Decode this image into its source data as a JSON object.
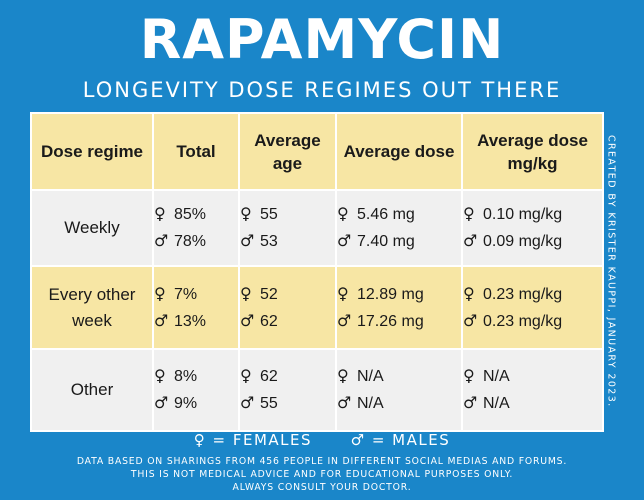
{
  "title": "RAPAMYCIN",
  "subtitle": "LONGEVITY DOSE REGIMES OUT THERE",
  "credit": "CREATED BY KRISTER KAUPPI, JANUARY 2023.",
  "colors": {
    "background": "#1a86c9",
    "header_row": "#f7e6a4",
    "row_light": "#f0f0f0",
    "row_highlight": "#f7e6a4"
  },
  "symbols": {
    "female": "♀",
    "male": "♂"
  },
  "table": {
    "headers": [
      "Dose regime",
      "Total",
      "Average age",
      "Average dose",
      "Average dose mg/kg"
    ],
    "rows": [
      {
        "regime": "Weekly",
        "total": {
          "female": "85%",
          "male": "78%"
        },
        "age": {
          "female": "55",
          "male": "53"
        },
        "dose": {
          "female": "5.46 mg",
          "male": "7.40 mg"
        },
        "dose_kg": {
          "female": "0.10 mg/kg",
          "male": "0.09 mg/kg"
        }
      },
      {
        "regime": "Every other week",
        "total": {
          "female": "7%",
          "male": "13%"
        },
        "age": {
          "female": "52",
          "male": "62"
        },
        "dose": {
          "female": "12.89 mg",
          "male": "17.26 mg"
        },
        "dose_kg": {
          "female": "0.23 mg/kg",
          "male": "0.23 mg/kg"
        }
      },
      {
        "regime": "Other",
        "total": {
          "female": "8%",
          "male": "9%"
        },
        "age": {
          "female": "62",
          "male": "55"
        },
        "dose": {
          "female": "N/A",
          "male": "N/A"
        },
        "dose_kg": {
          "female": "N/A",
          "male": "N/A"
        }
      }
    ]
  },
  "legend": {
    "female": "= FEMALES",
    "male": "= MALES"
  },
  "disclaimer": [
    "DATA BASED ON SHARINGS FROM 456 PEOPLE IN DIFFERENT SOCIAL MEDIAS AND FORUMS.",
    "THIS IS NOT MEDICAL ADVICE AND FOR EDUCATIONAL PURPOSES ONLY.",
    "ALWAYS CONSULT YOUR DOCTOR."
  ]
}
